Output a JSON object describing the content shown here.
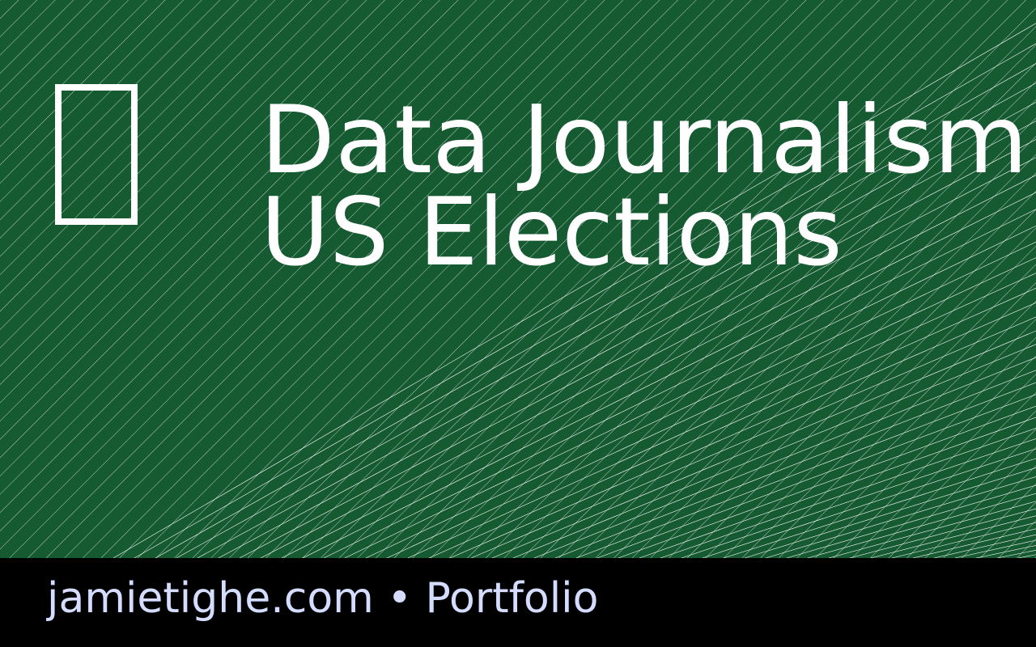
{
  "card": {
    "title_lines": [
      "Data Journalism",
      "US Elections"
    ],
    "footer": "jamietighe.com • Portfolio"
  }
}
